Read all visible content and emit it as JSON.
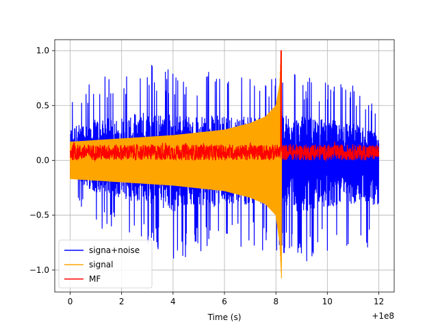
{
  "chart_data": {
    "type": "line",
    "title": "",
    "xlabel": "Time (s)",
    "ylabel": "",
    "x_offset_label": "+1e8",
    "xlim": [
      -0.6,
      12.6
    ],
    "ylim": [
      -1.2,
      1.1
    ],
    "grid": true,
    "legend_position": "lower-left",
    "xticks": [
      0,
      2,
      4,
      6,
      8,
      10,
      12
    ],
    "xtick_labels": [
      "0",
      "2",
      "4",
      "6",
      "8",
      "10",
      "12"
    ],
    "yticks": [
      -1.0,
      -0.5,
      0.0,
      0.5,
      1.0
    ],
    "ytick_labels": [
      "−1.0",
      "−0.5",
      "0.0",
      "0.5",
      "1.0"
    ],
    "series": [
      {
        "name": "signa+noise",
        "color": "#0000ff",
        "x_range": [
          0,
          12
        ],
        "envelope_upper": [
          [
            0,
            0.62
          ],
          [
            1,
            0.75
          ],
          [
            2,
            0.8
          ],
          [
            3,
            0.9
          ],
          [
            4,
            0.85
          ],
          [
            5,
            0.8
          ],
          [
            6,
            0.85
          ],
          [
            7,
            0.8
          ],
          [
            8,
            0.8
          ],
          [
            8.2,
            0.85
          ],
          [
            9,
            0.8
          ],
          [
            10,
            0.75
          ],
          [
            11,
            0.7
          ],
          [
            12,
            0.48
          ]
        ],
        "envelope_lower": [
          [
            0,
            -0.3
          ],
          [
            1,
            -0.6
          ],
          [
            2,
            -0.7
          ],
          [
            3,
            -0.8
          ],
          [
            4,
            -0.95
          ],
          [
            5,
            -0.85
          ],
          [
            6,
            -0.85
          ],
          [
            7,
            -0.8
          ],
          [
            8,
            -0.85
          ],
          [
            9,
            -0.95
          ],
          [
            10,
            -0.85
          ],
          [
            11,
            -0.8
          ],
          [
            12,
            -0.82
          ]
        ]
      },
      {
        "name": "signal",
        "color": "#ffa500",
        "x_range": [
          0,
          8.22
        ],
        "envelope_upper": [
          [
            0,
            0.17
          ],
          [
            2,
            0.2
          ],
          [
            4,
            0.23
          ],
          [
            6,
            0.28
          ],
          [
            7,
            0.34
          ],
          [
            7.6,
            0.4
          ],
          [
            8.0,
            0.5
          ],
          [
            8.15,
            0.7
          ],
          [
            8.2,
            1.0
          ]
        ],
        "envelope_lower": [
          [
            0,
            -0.17
          ],
          [
            2,
            -0.2
          ],
          [
            4,
            -0.23
          ],
          [
            6,
            -0.28
          ],
          [
            7,
            -0.34
          ],
          [
            7.6,
            -0.4
          ],
          [
            8.0,
            -0.5
          ],
          [
            8.15,
            -0.75
          ],
          [
            8.22,
            -1.1
          ]
        ]
      },
      {
        "name": "MF",
        "color": "#ff0000",
        "x_range": [
          0,
          12
        ],
        "baseline": 0.05,
        "band_upper": 0.17,
        "band_lower": 0.0,
        "peak": [
          8.2,
          1.0
        ]
      }
    ]
  }
}
